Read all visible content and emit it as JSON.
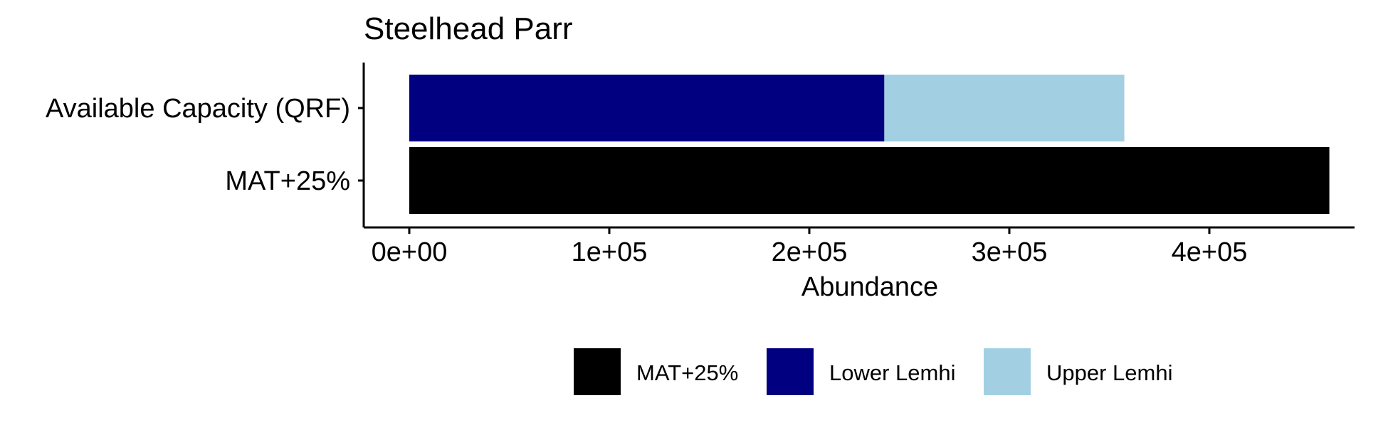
{
  "chart_data": {
    "type": "bar",
    "orientation": "horizontal",
    "stacked": true,
    "title": "Steelhead Parr",
    "xlabel": "Abundance",
    "ylabel": "",
    "categories": [
      "Available Capacity (QRF)",
      "MAT+25%"
    ],
    "series": [
      {
        "name": "MAT+25%",
        "color": "#000000",
        "values": [
          0,
          460000
        ]
      },
      {
        "name": "Lower Lemhi",
        "color": "#000080",
        "values": [
          237500,
          0
        ]
      },
      {
        "name": "Upper Lemhi",
        "color": "#A2D0E2",
        "values": [
          120000,
          0
        ]
      }
    ],
    "xlim": [
      0,
      480000
    ],
    "xticks": [
      0,
      100000,
      200000,
      300000,
      400000
    ],
    "xtick_labels": [
      "0e+00",
      "1e+05",
      "2e+05",
      "3e+05",
      "4e+05"
    ],
    "grid": false,
    "legend_position": "bottom"
  }
}
